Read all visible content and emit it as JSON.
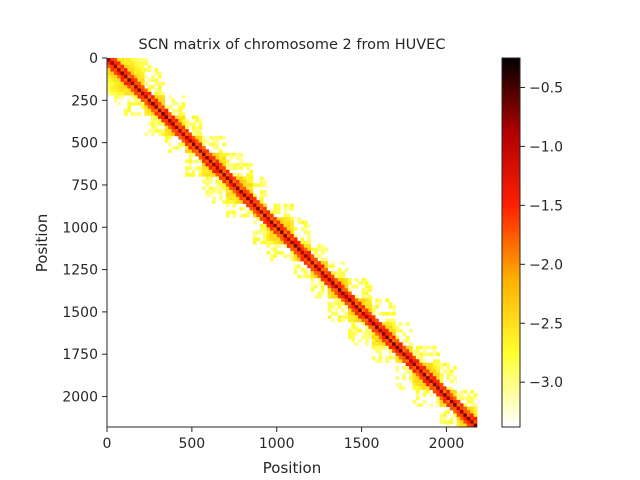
{
  "chart_data": {
    "type": "heatmap",
    "title": "SCN matrix of chromosome 2 from HUVEC",
    "xlabel": "Position",
    "ylabel": "Position",
    "xlim": [
      0,
      2180
    ],
    "ylim": [
      2180,
      0
    ],
    "xticks": [
      0,
      500,
      1000,
      1500,
      2000
    ],
    "yticks": [
      0,
      250,
      500,
      750,
      1000,
      1250,
      1500,
      1750,
      2000
    ],
    "colorbar": {
      "min": -3.38,
      "max": -0.25,
      "ticks": [
        "-0.5",
        "-1.0",
        "-1.5",
        "-2.0",
        "-2.5",
        "-3.0"
      ],
      "tick_values": [
        -0.5,
        -1.0,
        -1.5,
        -2.0,
        -2.5,
        -3.0
      ],
      "colormap": [
        "#ffffff",
        "#ffff30",
        "#ffb000",
        "#ff2000",
        "#b00000",
        "#000000"
      ]
    },
    "domains": [
      [
        0,
        210
      ],
      [
        210,
        330
      ],
      [
        330,
        460
      ],
      [
        460,
        560
      ],
      [
        560,
        700
      ],
      [
        700,
        850
      ],
      [
        850,
        940
      ],
      [
        940,
        1100
      ],
      [
        1100,
        1200
      ],
      [
        1200,
        1300
      ],
      [
        1300,
        1420
      ],
      [
        1420,
        1560
      ],
      [
        1560,
        1700
      ],
      [
        1700,
        1800
      ],
      [
        1800,
        1950
      ],
      [
        1950,
        2050
      ],
      [
        2050,
        2180
      ]
    ]
  }
}
